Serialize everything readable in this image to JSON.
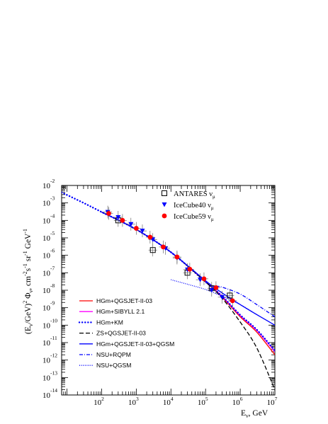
{
  "chart_data": {
    "type": "line",
    "title": "",
    "xlabel": "E_ν, GeV",
    "xlabel_parts": {
      "main": "E",
      "sub": "ν",
      "rest": ", GeV"
    },
    "ylabel": "(E_ν/GeV)^2 Φ_ν, cm^-2 s^-1 sr^-1 GeV^-1",
    "x_scale": "log",
    "y_scale": "log",
    "xlim": [
      7,
      10000000
    ],
    "ylim": [
      1e-14,
      0.01
    ],
    "grid": false,
    "x_ticks": [
      {
        "base": "10",
        "exp": "2",
        "value": 100
      },
      {
        "base": "10",
        "exp": "3",
        "value": 1000
      },
      {
        "base": "10",
        "exp": "4",
        "value": 10000
      },
      {
        "base": "10",
        "exp": "5",
        "value": 100000
      },
      {
        "base": "10",
        "exp": "6",
        "value": 1000000
      },
      {
        "base": "10",
        "exp": "7",
        "value": 10000000
      }
    ],
    "y_ticks": [
      {
        "base": "10",
        "exp": "-2",
        "value": 0.01
      },
      {
        "base": "10",
        "exp": "-3",
        "value": 0.001
      },
      {
        "base": "10",
        "exp": "-4",
        "value": 0.0001
      },
      {
        "base": "10",
        "exp": "-5",
        "value": 1e-05
      },
      {
        "base": "10",
        "exp": "-6",
        "value": 1e-06
      },
      {
        "base": "10",
        "exp": "-7",
        "value": 1e-07
      },
      {
        "base": "10",
        "exp": "-8",
        "value": 1e-08
      },
      {
        "base": "10",
        "exp": "-9",
        "value": 1e-09
      },
      {
        "base": "10",
        "exp": "-10",
        "value": 1e-10
      },
      {
        "base": "10",
        "exp": "-11",
        "value": 1e-11
      },
      {
        "base": "10",
        "exp": "-12",
        "value": 1e-12
      },
      {
        "base": "10",
        "exp": "-13",
        "value": 1e-13
      },
      {
        "base": "10",
        "exp": "-14",
        "value": 1e-14
      }
    ],
    "legend_top_right": [
      {
        "label": "ANTARES",
        "sub": "ν",
        "subsub": "μ",
        "marker": "open-square",
        "color": "#000000"
      },
      {
        "label": "IceCube40",
        "sub": "ν",
        "subsub": "μ",
        "marker": "down-triangle",
        "color": "#0000ff"
      },
      {
        "label": "IceCube59",
        "sub": "ν",
        "subsub": "μ",
        "marker": "circle",
        "color": "#ff0000"
      }
    ],
    "legend_bottom_left": [
      {
        "label": "HGm+QGSJET-II-03",
        "color": "#ff0000",
        "dash": "solid"
      },
      {
        "label": "HGm+SIBYLL 2.1",
        "color": "#ff00ff",
        "dash": "solid"
      },
      {
        "label": "HGm+KM",
        "color": "#0000ff",
        "dash": "dots"
      },
      {
        "label": "ZS+QGSJET-II-03",
        "color": "#000000",
        "dash": "dashed"
      },
      {
        "label": "HGm+QGSJET-II-03+QGSM",
        "color": "#0000ff",
        "dash": "solid"
      },
      {
        "label": "NSU+RQPM",
        "color": "#0000ff",
        "dash": "dashdot"
      },
      {
        "label": "NSU+QGSM",
        "color": "#0000ff",
        "dash": "dotted"
      }
    ],
    "series": [
      {
        "name": "HGm+QGSJET-II-03",
        "color": "#ff0000",
        "dash": "solid",
        "x": [
          100,
          1000,
          10000,
          100000,
          300000,
          1000000,
          3000000,
          10000000
        ],
        "y": [
          0.0003,
          3e-05,
          1.5e-06,
          3e-08,
          4e-09,
          3e-10,
          4e-11,
          2e-12
        ]
      },
      {
        "name": "HGm+SIBYLL 2.1",
        "color": "#ff00ff",
        "dash": "solid",
        "x": [
          100,
          1000,
          10000,
          100000,
          300000,
          1000000,
          3000000,
          10000000
        ],
        "y": [
          0.0003,
          3e-05,
          1.5e-06,
          3.2e-08,
          4.5e-09,
          3.5e-10,
          5e-11,
          3e-12
        ]
      },
      {
        "name": "HGm+KM",
        "color": "#0000ff",
        "dash": "dots",
        "x": [
          7,
          30,
          100,
          1000,
          10000,
          100000,
          300000,
          1000000,
          3000000,
          10000000
        ],
        "y": [
          0.004,
          0.001,
          0.0003,
          3e-05,
          1.5e-06,
          3e-08,
          4.5e-09,
          3.8e-10,
          5.5e-11,
          3.5e-12
        ]
      },
      {
        "name": "ZS+QGSJET-II-03",
        "color": "#000000",
        "dash": "dashed",
        "x": [
          100,
          1000,
          10000,
          100000,
          300000,
          1000000,
          3000000,
          10000000
        ],
        "y": [
          0.0003,
          3e-05,
          1.5e-06,
          3e-08,
          3.5e-09,
          1.5e-10,
          5e-12,
          2e-14
        ]
      },
      {
        "name": "HGm+QGSJET-II-03+QGSM",
        "color": "#0000ff",
        "dash": "solid",
        "x": [
          100,
          1000,
          10000,
          100000,
          300000,
          1000000,
          3000000,
          10000000
        ],
        "y": [
          0.0003,
          3e-05,
          1.5e-06,
          3.5e-08,
          7e-09,
          1.5e-09,
          4e-10,
          1e-10
        ]
      },
      {
        "name": "NSU+RQPM",
        "color": "#0000ff",
        "dash": "dashdot",
        "x": [
          200000,
          300000,
          1000000,
          3000000,
          10000000
        ],
        "y": [
          1.7e-08,
          1.5e-08,
          6e-09,
          1.5e-09,
          3e-10
        ]
      },
      {
        "name": "NSU+QGSM",
        "color": "#0000ff",
        "dash": "dotted",
        "x": [
          10000,
          30000,
          100000,
          300000,
          1000000,
          3000000
        ],
        "y": [
          4e-08,
          2.2e-08,
          1.1e-08,
          4.5e-09,
          1.5e-09,
          4e-10
        ]
      }
    ],
    "data_points": {
      "ANTARES": {
        "marker": "open-square",
        "color": "#000000",
        "x": [
          300,
          3000,
          30000,
          150000,
          500000
        ],
        "y": [
          0.0001,
          2e-06,
          1e-07,
          1.3e-08,
          5e-09
        ]
      },
      "IceCube40": {
        "marker": "down-triangle",
        "color": "#0000ff",
        "x": [
          150,
          300,
          700,
          1500,
          3000,
          7000,
          15000,
          30000,
          70000,
          150000,
          300000
        ],
        "y": [
          0.0003,
          0.00015,
          6e-05,
          2.5e-05,
          8e-06,
          2.5e-06,
          7e-07,
          1.5e-07,
          4e-08,
          1e-08,
          4e-09
        ]
      },
      "IceCube59": {
        "marker": "circle",
        "color": "#ff0000",
        "x": [
          160,
          400,
          1000,
          2500,
          6000,
          15000,
          35000,
          90000,
          200000,
          600000
        ],
        "y": [
          0.00025,
          0.0001,
          3.5e-05,
          1.1e-05,
          3e-06,
          8e-07,
          1.6e-07,
          4.5e-08,
          1.4e-08,
          2.5e-09
        ]
      }
    }
  }
}
